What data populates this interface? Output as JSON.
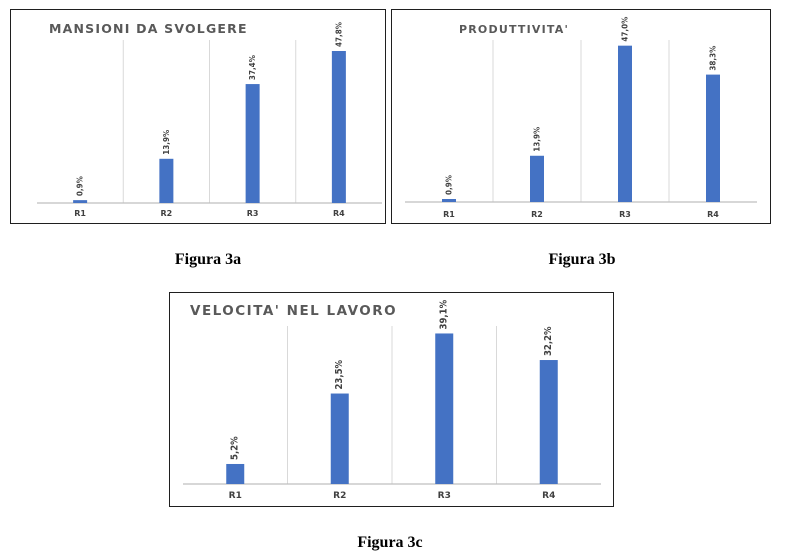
{
  "colors": {
    "bar": "#4472C4",
    "grid": "#d9d9d9",
    "axis": "#bfbfbf",
    "label": "#404040",
    "title": "#595959"
  },
  "captions": {
    "a": "Figura 3a",
    "b": "Figura 3b",
    "c": "Figura 3c"
  },
  "chart_data": [
    {
      "type": "bar",
      "title": "MANSIONI DA SVOLGERE",
      "categories": [
        "R1",
        "R2",
        "R3",
        "R4"
      ],
      "values": [
        0.9,
        13.9,
        37.4,
        47.8
      ],
      "data_labels": [
        "0,9%",
        "13,9%",
        "37,4%",
        "47,8%"
      ],
      "ylim": [
        0,
        50
      ],
      "grid": "vertical category separators",
      "legend": "none"
    },
    {
      "type": "bar",
      "title": "PRODUTTIVITA'",
      "categories": [
        "R1",
        "R2",
        "R3",
        "R4"
      ],
      "values": [
        0.9,
        13.9,
        47.0,
        38.3
      ],
      "data_labels": [
        "0,9%",
        "13,9%",
        "47,0%",
        "38,3%"
      ],
      "ylim": [
        0,
        47.5
      ],
      "grid": "vertical category separators",
      "legend": "none"
    },
    {
      "type": "bar",
      "title": "VELOCITA' NEL LAVORO",
      "categories": [
        "R1",
        "R2",
        "R3",
        "R4"
      ],
      "values": [
        5.2,
        23.5,
        39.1,
        32.2
      ],
      "data_labels": [
        "5,2%",
        "23,5%",
        "39,1%",
        "32,2%"
      ],
      "ylim": [
        0,
        40
      ],
      "grid": "vertical category separators",
      "legend": "none"
    }
  ]
}
